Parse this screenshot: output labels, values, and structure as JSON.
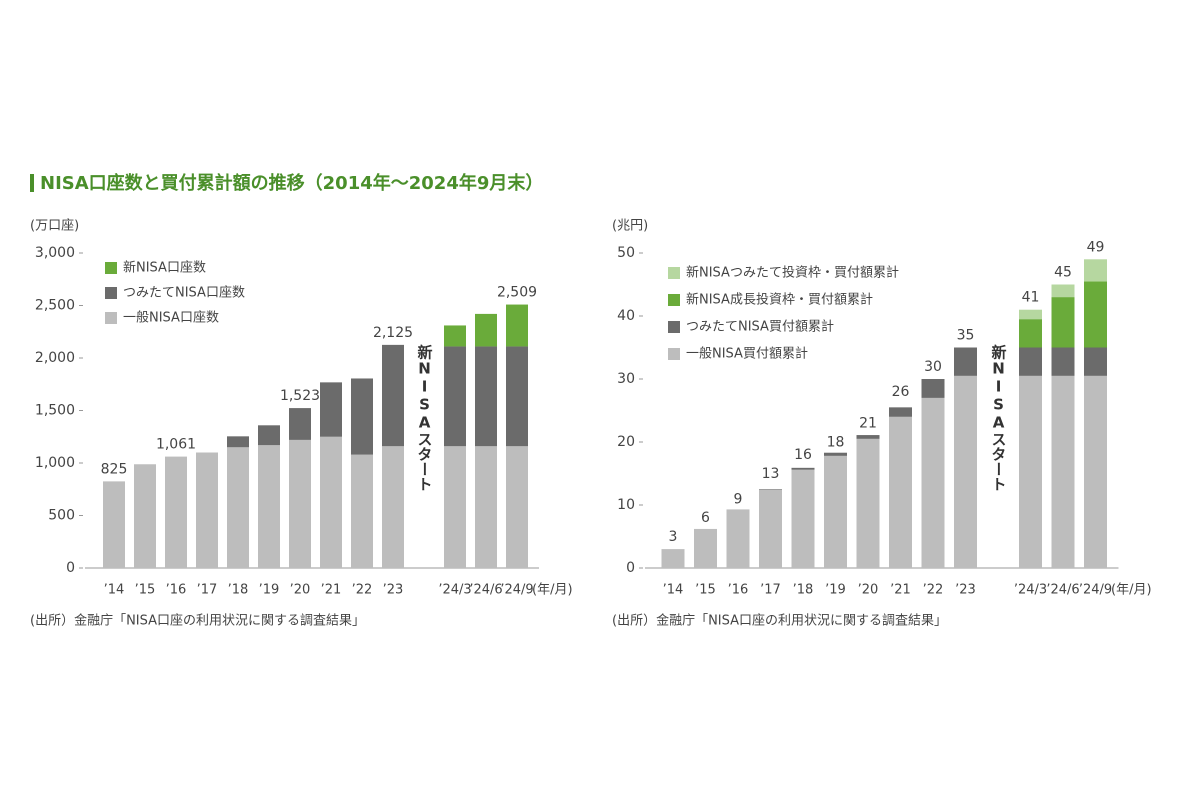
{
  "title": "NISA口座数と買付累計額の推移（2014年～2024年9月末）",
  "chart_data": [
    {
      "type": "bar",
      "stacked": true,
      "y_unit_label": "(万口座)",
      "x_unit_label": "(年/月)",
      "annotation": "新NISAスタート",
      "source": "(出所）金融庁「NISA口座の利用状況に関する調査結果」",
      "legend": "upper-left",
      "categories": [
        "’14",
        "’15",
        "’16",
        "’17",
        "’18",
        "’19",
        "’20",
        "’21",
        "’22",
        "’23",
        "’24/3",
        "’24/6",
        "’24/9"
      ],
      "series": [
        {
          "name": "一般NISA口座数",
          "color": "#bdbdbd",
          "values": [
            825,
            988,
            1061,
            1100,
            1150,
            1170,
            1220,
            1250,
            1080,
            1160,
            1160,
            1160,
            1160
          ]
        },
        {
          "name": "つみたてNISA口座数",
          "color": "#6b6b6b",
          "values": [
            null,
            null,
            null,
            null,
            104,
            189,
            303,
            518,
            725,
            965,
            950,
            950,
            950
          ]
        },
        {
          "name": "新NISA口座数",
          "color": "#6aab3a",
          "values": [
            null,
            null,
            null,
            null,
            null,
            null,
            null,
            null,
            null,
            null,
            200,
            310,
            399
          ]
        }
      ],
      "totals": [
        {
          "category": "’14",
          "value": 825,
          "label": "825"
        },
        {
          "category": "’16",
          "value": 1061,
          "label": "1,061"
        },
        {
          "category": "’20",
          "value": 1523,
          "label": "1,523"
        },
        {
          "category": "’23",
          "value": 2125,
          "label": "2,125"
        },
        {
          "category": "’24/9",
          "value": 2509,
          "label": "2,509"
        }
      ],
      "ylim": [
        0,
        3000
      ],
      "yticks": [
        0,
        500,
        {
          "value": 1000,
          "label": "1,000"
        },
        {
          "value": 1500,
          "label": "1,500"
        },
        {
          "value": 2000,
          "label": "2,000"
        },
        {
          "value": 2500,
          "label": "2,500"
        },
        {
          "value": 3000,
          "label": "3,000"
        }
      ]
    },
    {
      "type": "bar",
      "stacked": true,
      "y_unit_label": "(兆円)",
      "x_unit_label": "(年/月)",
      "annotation": "新NISAスタート",
      "source": "(出所）金融庁「NISA口座の利用状況に関する調査結果」",
      "legend": "upper-left",
      "categories": [
        "’14",
        "’15",
        "’16",
        "’17",
        "’18",
        "’19",
        "’20",
        "’21",
        "’22",
        "’23",
        "’24/3",
        "’24/6",
        "’24/9"
      ],
      "series": [
        {
          "name": "一般NISA買付額累計",
          "color": "#bdbdbd",
          "values": [
            3,
            6.2,
            9.3,
            12.4,
            15.6,
            17.8,
            20.5,
            24,
            27,
            30.5,
            30.5,
            30.5,
            30.5
          ]
        },
        {
          "name": "つみたてNISA買付額累計",
          "color": "#6b6b6b",
          "values": [
            null,
            null,
            null,
            0.1,
            0.3,
            0.5,
            0.6,
            1.5,
            3,
            4.5,
            4.5,
            4.5,
            4.5
          ]
        },
        {
          "name": "新NISA成長投資枠・買付額累計",
          "color": "#6aab3a",
          "values": [
            null,
            null,
            null,
            null,
            null,
            null,
            null,
            null,
            null,
            null,
            4.5,
            8,
            10.5
          ]
        },
        {
          "name": "新NISAつみたて投資枠・買付額累計",
          "color": "#b6d7a0",
          "values": [
            null,
            null,
            null,
            null,
            null,
            null,
            null,
            null,
            null,
            null,
            1.5,
            2,
            3.5
          ]
        }
      ],
      "totals": [
        {
          "category": "’14",
          "value": 3,
          "label": "3"
        },
        {
          "category": "’15",
          "value": 6,
          "label": "6"
        },
        {
          "category": "’16",
          "value": 9,
          "label": "9"
        },
        {
          "category": "’17",
          "value": 13,
          "label": "13"
        },
        {
          "category": "’18",
          "value": 16,
          "label": "16"
        },
        {
          "category": "’19",
          "value": 18,
          "label": "18"
        },
        {
          "category": "’20",
          "value": 21,
          "label": "21"
        },
        {
          "category": "’21",
          "value": 26,
          "label": "26"
        },
        {
          "category": "’22",
          "value": 30,
          "label": "30"
        },
        {
          "category": "’23",
          "value": 35,
          "label": "35"
        },
        {
          "category": "’24/3",
          "value": 41,
          "label": "41"
        },
        {
          "category": "’24/6",
          "value": 45,
          "label": "45"
        },
        {
          "category": "’24/9",
          "value": 49,
          "label": "49"
        }
      ],
      "ylim": [
        0,
        50
      ],
      "yticks": [
        0,
        10,
        20,
        30,
        40,
        50
      ]
    }
  ]
}
